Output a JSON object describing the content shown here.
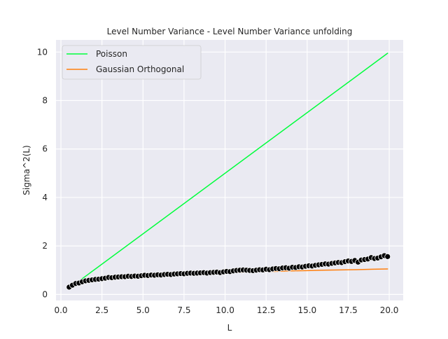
{
  "colors": {
    "background": "#ffffff",
    "plot_area": "#eaeaf2",
    "grid": "#ffffff",
    "poisson": "#00ff3c",
    "goe": "#ff7f0e",
    "points": "#000000",
    "point_edge": "#ffffff",
    "text": "#262626"
  },
  "chart_data": {
    "type": "line",
    "title": "Level Number Variance - Level Number Variance unfolding",
    "xlabel": "L",
    "ylabel": "Sigma^2(L)",
    "xlim": [
      -0.3,
      20.85
    ],
    "ylim": [
      -0.25,
      10.5
    ],
    "xticks": [
      0.0,
      2.5,
      5.0,
      7.5,
      10.0,
      12.5,
      15.0,
      17.5,
      20.0
    ],
    "xtick_labels": [
      "0.0",
      "2.5",
      "5.0",
      "7.5",
      "10.0",
      "12.5",
      "15.0",
      "17.5",
      "20.0"
    ],
    "yticks": [
      0,
      2,
      4,
      6,
      8,
      10
    ],
    "ytick_labels": [
      "0",
      "2",
      "4",
      "6",
      "8",
      "10"
    ],
    "grid": true,
    "legend_position": "top-left",
    "legend": [
      "Poisson",
      "Gaussian Orthogonal"
    ],
    "series": [
      {
        "name": "Poisson",
        "kind": "line",
        "color": "#00ff3c",
        "x": [
          0.5,
          19.9
        ],
        "y": [
          0.25,
          9.95
        ]
      },
      {
        "name": "Gaussian Orthogonal",
        "kind": "line",
        "color": "#ff7f0e",
        "x": [
          0.5,
          1.0,
          1.5,
          2.0,
          3.0,
          4.0,
          5.0,
          6.0,
          7.0,
          8.0,
          9.0,
          10.0,
          11.0,
          12.0,
          13.0,
          14.0,
          15.0,
          16.0,
          17.0,
          18.0,
          19.0,
          19.9
        ],
        "y": [
          0.3,
          0.44,
          0.52,
          0.57,
          0.65,
          0.71,
          0.75,
          0.79,
          0.82,
          0.85,
          0.87,
          0.89,
          0.91,
          0.93,
          0.95,
          0.97,
          0.98,
          1.0,
          1.01,
          1.02,
          1.04,
          1.05
        ]
      },
      {
        "kind": "scatter",
        "color": "#000000",
        "x": [
          0.5,
          0.7,
          0.9,
          1.1,
          1.3,
          1.5,
          1.7,
          1.9,
          2.1,
          2.3,
          2.5,
          2.7,
          2.9,
          3.1,
          3.3,
          3.5,
          3.7,
          3.9,
          4.1,
          4.3,
          4.5,
          4.7,
          4.9,
          5.1,
          5.3,
          5.5,
          5.7,
          5.9,
          6.1,
          6.3,
          6.5,
          6.7,
          6.9,
          7.1,
          7.3,
          7.5,
          7.7,
          7.9,
          8.1,
          8.3,
          8.5,
          8.7,
          8.9,
          9.1,
          9.3,
          9.5,
          9.7,
          9.9,
          10.1,
          10.3,
          10.5,
          10.7,
          10.9,
          11.1,
          11.3,
          11.5,
          11.7,
          11.9,
          12.1,
          12.3,
          12.5,
          12.7,
          12.9,
          13.1,
          13.3,
          13.5,
          13.7,
          13.9,
          14.1,
          14.3,
          14.5,
          14.7,
          14.9,
          15.1,
          15.3,
          15.5,
          15.7,
          15.9,
          16.1,
          16.3,
          16.5,
          16.7,
          16.9,
          17.1,
          17.3,
          17.5,
          17.7,
          17.9,
          18.1,
          18.3,
          18.5,
          18.7,
          18.9,
          19.1,
          19.3,
          19.5,
          19.7,
          19.9
        ],
        "y": [
          0.3,
          0.38,
          0.45,
          0.47,
          0.52,
          0.56,
          0.58,
          0.6,
          0.62,
          0.63,
          0.65,
          0.67,
          0.7,
          0.69,
          0.71,
          0.72,
          0.73,
          0.73,
          0.75,
          0.74,
          0.76,
          0.75,
          0.77,
          0.79,
          0.78,
          0.8,
          0.79,
          0.81,
          0.8,
          0.82,
          0.83,
          0.82,
          0.84,
          0.85,
          0.86,
          0.85,
          0.87,
          0.88,
          0.87,
          0.88,
          0.89,
          0.9,
          0.88,
          0.9,
          0.91,
          0.92,
          0.9,
          0.93,
          0.95,
          0.94,
          0.97,
          0.99,
          1.0,
          1.01,
          1.0,
          0.99,
          0.98,
          1.0,
          1.02,
          1.01,
          1.04,
          1.02,
          1.05,
          1.07,
          1.06,
          1.09,
          1.1,
          1.08,
          1.12,
          1.11,
          1.14,
          1.13,
          1.16,
          1.18,
          1.17,
          1.2,
          1.22,
          1.24,
          1.26,
          1.25,
          1.28,
          1.3,
          1.32,
          1.31,
          1.35,
          1.38,
          1.36,
          1.4,
          1.33,
          1.42,
          1.44,
          1.46,
          1.52,
          1.48,
          1.5,
          1.55,
          1.6,
          1.56
        ]
      }
    ]
  }
}
